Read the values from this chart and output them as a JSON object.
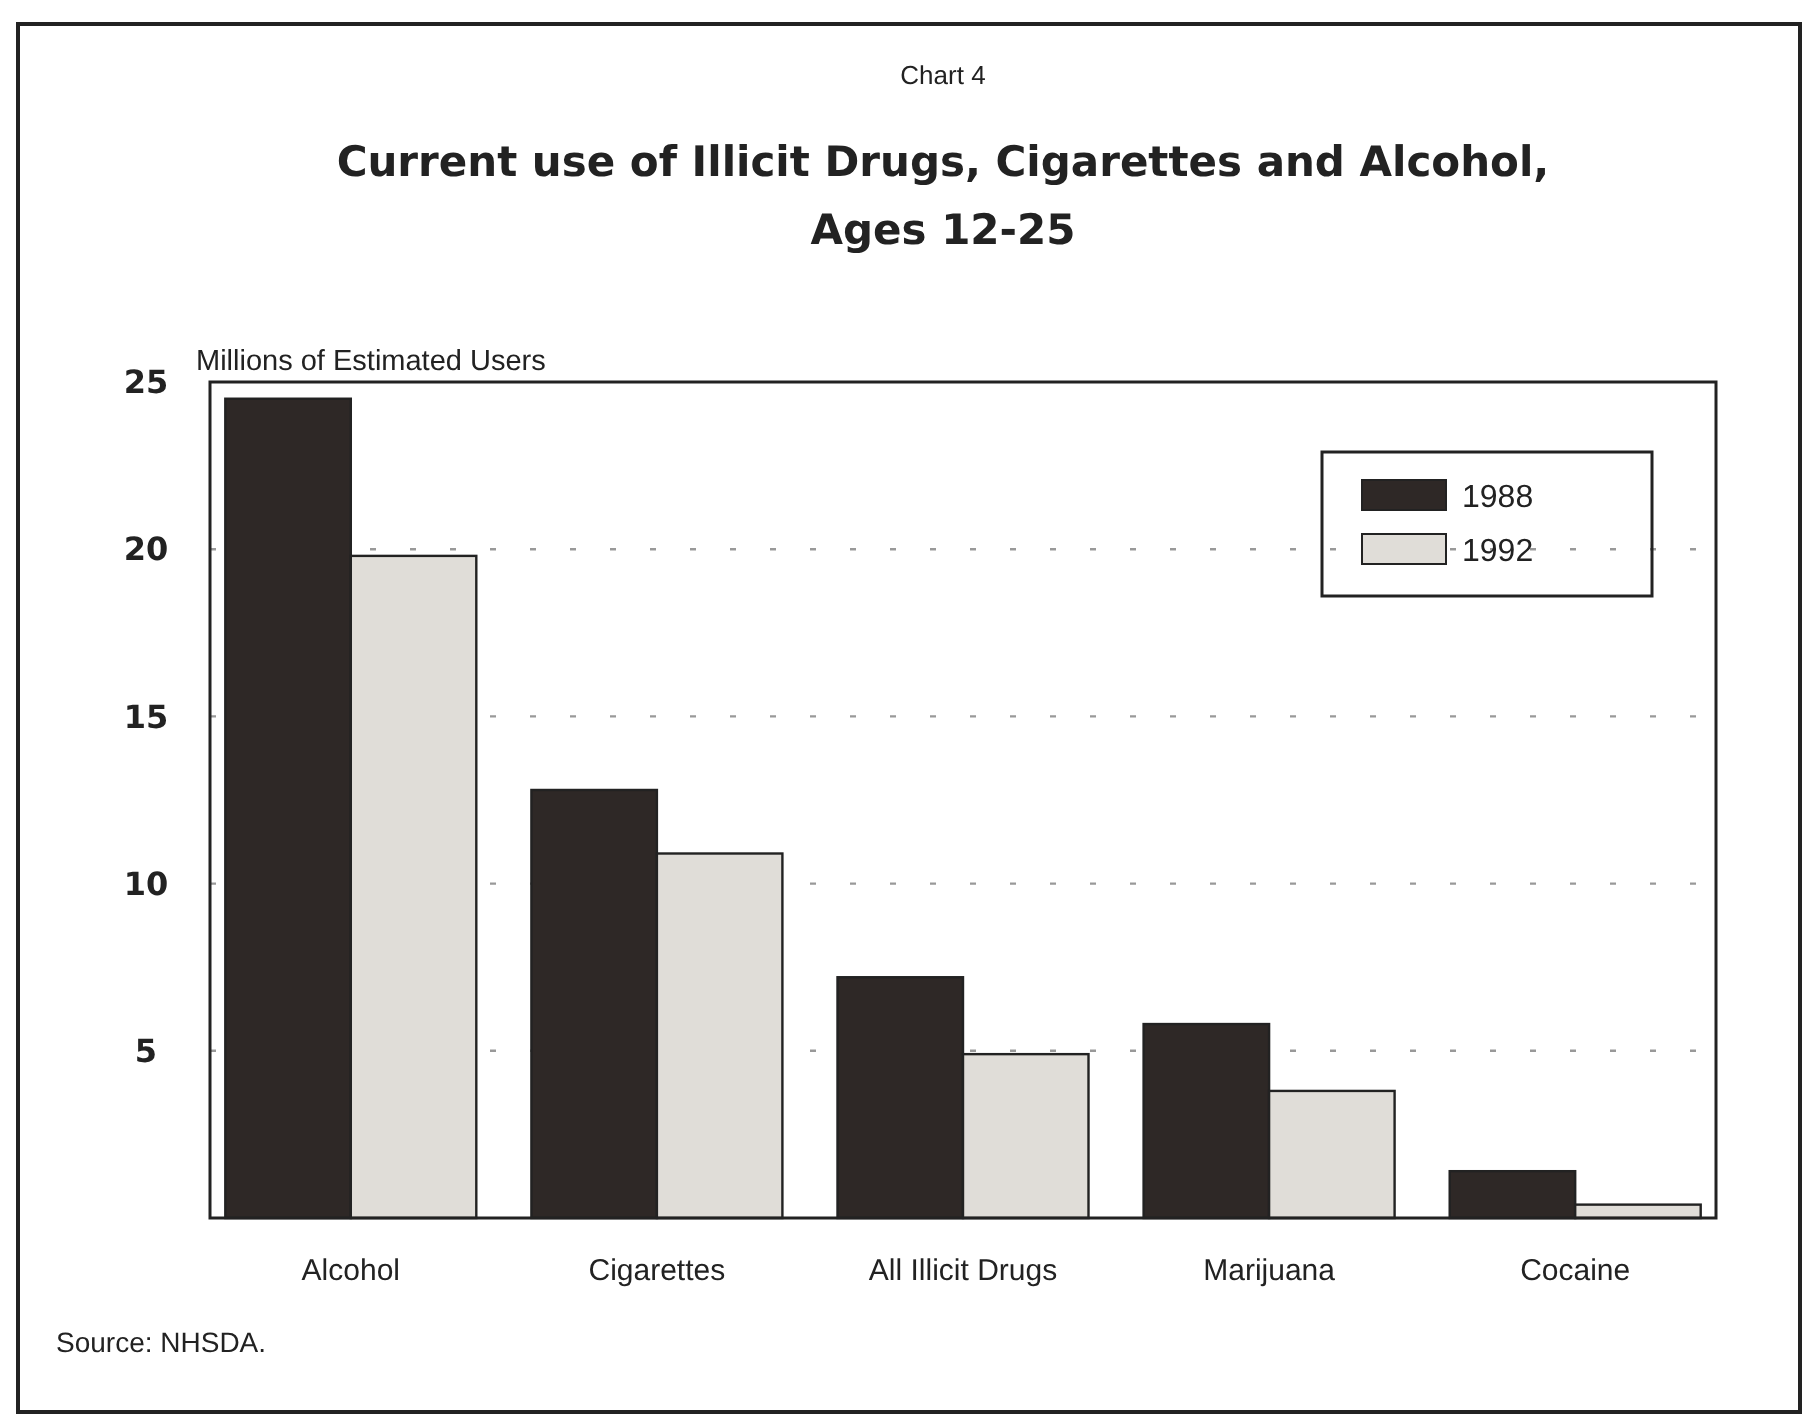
{
  "chart_data": {
    "type": "bar",
    "title": "Current use of Illicit Drugs, Cigarettes and Alcohol, Ages 12-25",
    "ylabel": "Millions of Estimated Users",
    "annotations": [
      "Chart 4",
      "Source: NHSDA."
    ],
    "categories": [
      "Alcohol",
      "Cigarettes",
      "All Illicit Drugs",
      "Marijuana",
      "Cocaine"
    ],
    "series": [
      {
        "name": "1988",
        "color": "#2e2826",
        "values": [
          24.5,
          12.8,
          7.2,
          5.8,
          1.4
        ]
      },
      {
        "name": "1992",
        "color": "#e0ddd8",
        "values": [
          19.8,
          10.9,
          4.9,
          3.8,
          0.4
        ]
      }
    ],
    "ylim": [
      0,
      25
    ],
    "yticks": [
      5,
      10,
      15,
      20,
      25
    ],
    "grid": "y",
    "legend": "top right"
  }
}
